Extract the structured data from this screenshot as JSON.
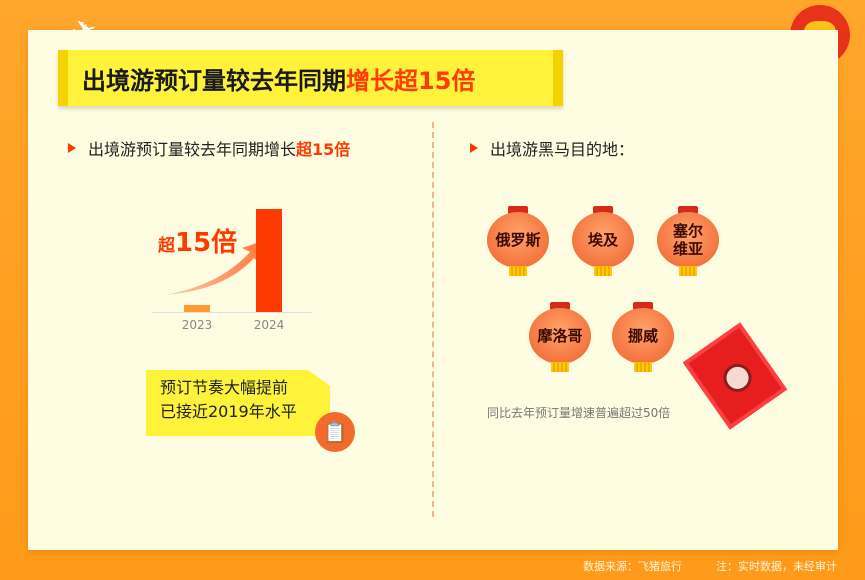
{
  "title": {
    "main": "出境游预订量较去年同期",
    "highlight": "增长超15倍"
  },
  "left": {
    "heading": "出境游预订量较去年同期增长",
    "heading_highlight": "超15倍",
    "multiplier_prefix": "超",
    "multiplier": "15倍",
    "callout_line1": "预订节奏大幅提前",
    "callout_line2": "已接近2019年水平"
  },
  "right": {
    "heading": "出境游黑马目的地：",
    "destinations": [
      "俄罗斯",
      "埃及",
      "塞尔维亚",
      "摩洛哥",
      "挪威"
    ],
    "note": "同比去年预订量增速普遍超过50倍"
  },
  "footer": {
    "source": "数据来源：飞猪旅行",
    "note": "注：实时数据，未经审计"
  },
  "colors": {
    "accent": "#ff3a00",
    "bar_2023": "#ff9a2e",
    "bar_2024": "#ff3a00",
    "background": "#ff9a1a",
    "card": "#fefde2"
  },
  "chart_data": {
    "type": "bar",
    "categories": [
      "2023",
      "2024"
    ],
    "values": [
      1,
      15
    ],
    "title": "",
    "xlabel": "",
    "ylabel": "",
    "grid": false,
    "annotation": "超15倍"
  }
}
